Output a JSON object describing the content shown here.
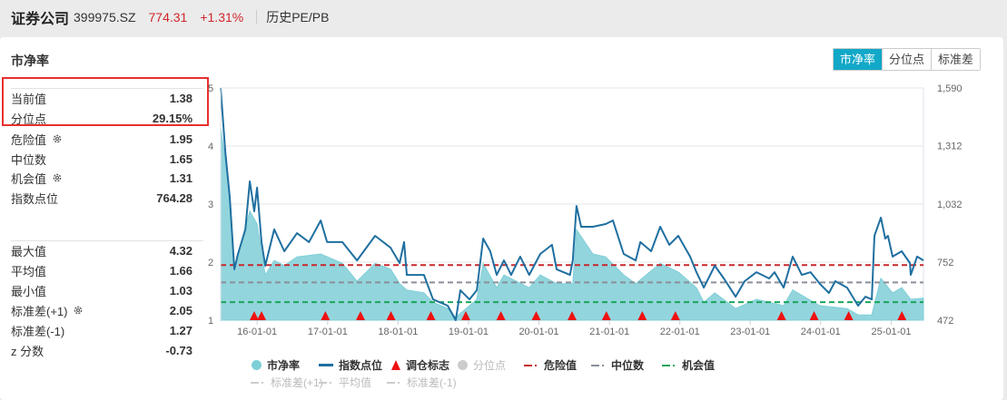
{
  "header": {
    "name": "证券公司",
    "code": "399975.SZ",
    "price": "774.31",
    "change": "+1.31%",
    "history_link": "历史PE/PB"
  },
  "panel": {
    "title": "市净率"
  },
  "tabs": [
    {
      "label": "市净率",
      "active": true
    },
    {
      "label": "分位点",
      "active": false
    },
    {
      "label": "标准差",
      "active": false
    }
  ],
  "stats_top": [
    {
      "label": "当前值",
      "value": "1.38"
    },
    {
      "label": "分位点",
      "value": "29.15%"
    },
    {
      "label": "危险值",
      "value": "1.95",
      "icon": "gear-icon"
    },
    {
      "label": "中位数",
      "value": "1.65"
    },
    {
      "label": "机会值",
      "value": "1.31",
      "icon": "gear-icon"
    },
    {
      "label": "指数点位",
      "value": "764.28"
    }
  ],
  "stats_bottom": [
    {
      "label": "最大值",
      "value": "4.32"
    },
    {
      "label": "平均值",
      "value": "1.66"
    },
    {
      "label": "最小值",
      "value": "1.03"
    },
    {
      "label": "标准差(+1)",
      "value": "2.05",
      "icon": "gear-icon"
    },
    {
      "label": "标准差(-1)",
      "value": "1.27"
    },
    {
      "label": "z 分数",
      "value": "-0.73"
    }
  ],
  "legend": [
    {
      "label": "市净率",
      "marker": "dot",
      "color": "#7fcfd8",
      "enabled": true
    },
    {
      "label": "指数点位",
      "marker": "line",
      "color": "#1f6fa0",
      "enabled": true
    },
    {
      "label": "调仓标志",
      "marker": "triangle",
      "color": "#ee1111",
      "enabled": true
    },
    {
      "label": "分位点",
      "marker": "dot",
      "color": "#cccccc",
      "enabled": false
    },
    {
      "label": "危险值",
      "marker": "dash",
      "color": "#c8282d",
      "enabled": true
    },
    {
      "label": "中位数",
      "marker": "dash",
      "color": "#8a8f99",
      "enabled": true
    },
    {
      "label": "机会值",
      "marker": "dash",
      "color": "#1aa55a",
      "enabled": true
    },
    {
      "label": "标准差(+1)",
      "marker": "dash",
      "color": "#cccccc",
      "enabled": false
    },
    {
      "label": "平均值",
      "marker": "dash",
      "color": "#cccccc",
      "enabled": false
    },
    {
      "label": "标准差(-1)",
      "marker": "dash",
      "color": "#cccccc",
      "enabled": false
    }
  ],
  "chart_data": {
    "type": "area+line",
    "x_range": [
      "2015-06-26",
      "2025-06-17"
    ],
    "x_ticks": [
      "16-01-01",
      "17-01-01",
      "18-01-01",
      "19-01-01",
      "20-01-01",
      "21-01-01",
      "22-01-01",
      "23-01-01",
      "24-01-01",
      "25-01-01"
    ],
    "y_left": {
      "range": [
        1,
        5
      ],
      "ticks": [
        "1",
        "2",
        "3",
        "4",
        "5"
      ]
    },
    "y_right": {
      "range": [
        472,
        1590
      ],
      "ticks": [
        "472",
        "752",
        "1,032",
        "1,312",
        "1,590"
      ]
    },
    "grid": true,
    "colors": {
      "pb_area": "#93d5dd",
      "index_line": "#1f6fa0",
      "danger": "#c8282d",
      "median": "#8a8f99",
      "opportunity": "#1aa55a",
      "marker": "#ee1111"
    },
    "reference_lines": {
      "danger": 1.95,
      "median": 1.65,
      "opportunity": 1.31
    },
    "pb": [
      [
        "2015-06-26",
        4.33
      ],
      [
        "2015-08-12",
        3.13
      ],
      [
        "2015-09-05",
        1.88
      ],
      [
        "2015-11-24",
        2.88
      ],
      [
        "2016-01-01",
        2.66
      ],
      [
        "2016-02-12",
        1.78
      ],
      [
        "2016-03-30",
        2.03
      ],
      [
        "2016-05-21",
        1.94
      ],
      [
        "2016-07-26",
        2.09
      ],
      [
        "2016-11-26",
        2.14
      ],
      [
        "2017-03-18",
        1.98
      ],
      [
        "2017-06-02",
        1.67
      ],
      [
        "2017-09-04",
        1.98
      ],
      [
        "2017-11-23",
        1.88
      ],
      [
        "2018-01-09",
        1.63
      ],
      [
        "2018-02-15",
        1.52
      ],
      [
        "2018-05-15",
        1.47
      ],
      [
        "2018-07-01",
        1.31
      ],
      [
        "2018-09-15",
        1.2
      ],
      [
        "2018-10-27",
        1.05
      ],
      [
        "2019-01-06",
        1.25
      ],
      [
        "2019-02-13",
        1.36
      ],
      [
        "2019-03-18",
        1.98
      ],
      [
        "2019-05-27",
        1.56
      ],
      [
        "2019-07-04",
        1.78
      ],
      [
        "2019-11-12",
        1.56
      ],
      [
        "2020-01-08",
        1.78
      ],
      [
        "2020-04-02",
        1.63
      ],
      [
        "2020-06-25",
        1.63
      ],
      [
        "2020-07-14",
        2.56
      ],
      [
        "2020-10-07",
        2.14
      ],
      [
        "2020-12-12",
        2.09
      ],
      [
        "2021-03-16",
        1.78
      ],
      [
        "2021-05-17",
        1.63
      ],
      [
        "2021-09-21",
        1.98
      ],
      [
        "2021-12-24",
        1.83
      ],
      [
        "2022-03-28",
        1.56
      ],
      [
        "2022-05-05",
        1.31
      ],
      [
        "2022-07-01",
        1.47
      ],
      [
        "2022-10-17",
        1.2
      ],
      [
        "2023-02-02",
        1.36
      ],
      [
        "2023-06-23",
        1.25
      ],
      [
        "2023-08-09",
        1.52
      ],
      [
        "2023-12-28",
        1.25
      ],
      [
        "2024-05-17",
        1.2
      ],
      [
        "2024-07-13",
        1.09
      ],
      [
        "2024-09-22",
        1.09
      ],
      [
        "2024-11-08",
        1.72
      ],
      [
        "2025-01-08",
        1.47
      ],
      [
        "2025-02-24",
        1.56
      ],
      [
        "2025-04-12",
        1.36
      ],
      [
        "2025-06-17",
        1.38
      ]
    ],
    "index": [
      [
        "2015-06-26",
        1590
      ],
      [
        "2015-07-20",
        1284
      ],
      [
        "2015-08-12",
        1066
      ],
      [
        "2015-09-05",
        717
      ],
      [
        "2015-09-24",
        791
      ],
      [
        "2015-11-01",
        909
      ],
      [
        "2015-11-24",
        1140
      ],
      [
        "2015-12-17",
        996
      ],
      [
        "2016-01-01",
        1110
      ],
      [
        "2016-01-24",
        848
      ],
      [
        "2016-02-12",
        734
      ],
      [
        "2016-03-30",
        909
      ],
      [
        "2016-05-21",
        804
      ],
      [
        "2016-07-26",
        891
      ],
      [
        "2016-09-26",
        848
      ],
      [
        "2016-11-26",
        952
      ],
      [
        "2016-12-29",
        848
      ],
      [
        "2017-03-18",
        848
      ],
      [
        "2017-06-02",
        760
      ],
      [
        "2017-09-04",
        878
      ],
      [
        "2017-11-23",
        821
      ],
      [
        "2018-01-09",
        747
      ],
      [
        "2018-02-01",
        848
      ],
      [
        "2018-02-15",
        690
      ],
      [
        "2018-05-15",
        690
      ],
      [
        "2018-07-01",
        572
      ],
      [
        "2018-09-15",
        542
      ],
      [
        "2018-10-27",
        472
      ],
      [
        "2018-11-20",
        616
      ],
      [
        "2019-01-06",
        572
      ],
      [
        "2019-02-13",
        616
      ],
      [
        "2019-03-18",
        865
      ],
      [
        "2019-04-24",
        804
      ],
      [
        "2019-05-27",
        690
      ],
      [
        "2019-07-04",
        760
      ],
      [
        "2019-08-10",
        690
      ],
      [
        "2019-09-26",
        778
      ],
      [
        "2019-11-12",
        690
      ],
      [
        "2020-01-08",
        791
      ],
      [
        "2020-03-09",
        835
      ],
      [
        "2020-04-02",
        717
      ],
      [
        "2020-06-10",
        690
      ],
      [
        "2020-06-25",
        760
      ],
      [
        "2020-07-14",
        1022
      ],
      [
        "2020-08-07",
        922
      ],
      [
        "2020-10-07",
        922
      ],
      [
        "2020-12-12",
        935
      ],
      [
        "2021-01-19",
        952
      ],
      [
        "2021-03-16",
        791
      ],
      [
        "2021-05-17",
        760
      ],
      [
        "2021-06-10",
        848
      ],
      [
        "2021-08-05",
        804
      ],
      [
        "2021-09-21",
        922
      ],
      [
        "2021-11-07",
        835
      ],
      [
        "2021-12-24",
        878
      ],
      [
        "2022-02-23",
        778
      ],
      [
        "2022-03-28",
        703
      ],
      [
        "2022-05-05",
        629
      ],
      [
        "2022-07-01",
        734
      ],
      [
        "2022-08-17",
        673
      ],
      [
        "2022-10-17",
        585
      ],
      [
        "2022-12-03",
        660
      ],
      [
        "2023-02-02",
        703
      ],
      [
        "2023-04-09",
        673
      ],
      [
        "2023-05-07",
        703
      ],
      [
        "2023-06-23",
        629
      ],
      [
        "2023-08-09",
        778
      ],
      [
        "2023-09-25",
        690
      ],
      [
        "2023-11-10",
        703
      ],
      [
        "2023-12-28",
        647
      ],
      [
        "2024-02-13",
        603
      ],
      [
        "2024-03-17",
        660
      ],
      [
        "2024-05-17",
        629
      ],
      [
        "2024-07-13",
        542
      ],
      [
        "2024-08-20",
        585
      ],
      [
        "2024-09-22",
        572
      ],
      [
        "2024-10-06",
        878
      ],
      [
        "2024-11-08",
        966
      ],
      [
        "2024-12-01",
        865
      ],
      [
        "2024-12-15",
        878
      ],
      [
        "2025-01-08",
        778
      ],
      [
        "2025-02-24",
        804
      ],
      [
        "2025-04-08",
        747
      ],
      [
        "2025-04-12",
        690
      ],
      [
        "2025-05-15",
        778
      ],
      [
        "2025-06-17",
        760
      ]
    ],
    "rebalance_markers": [
      "2015-12-17",
      "2016-01-24",
      "2016-12-20",
      "2017-06-20",
      "2017-11-25",
      "2018-06-20",
      "2018-12-18",
      "2019-06-18",
      "2019-12-18",
      "2020-06-21",
      "2020-12-16",
      "2021-06-20",
      "2021-12-09",
      "2023-06-12",
      "2023-11-28",
      "2024-05-25",
      "2025-02-25"
    ]
  }
}
